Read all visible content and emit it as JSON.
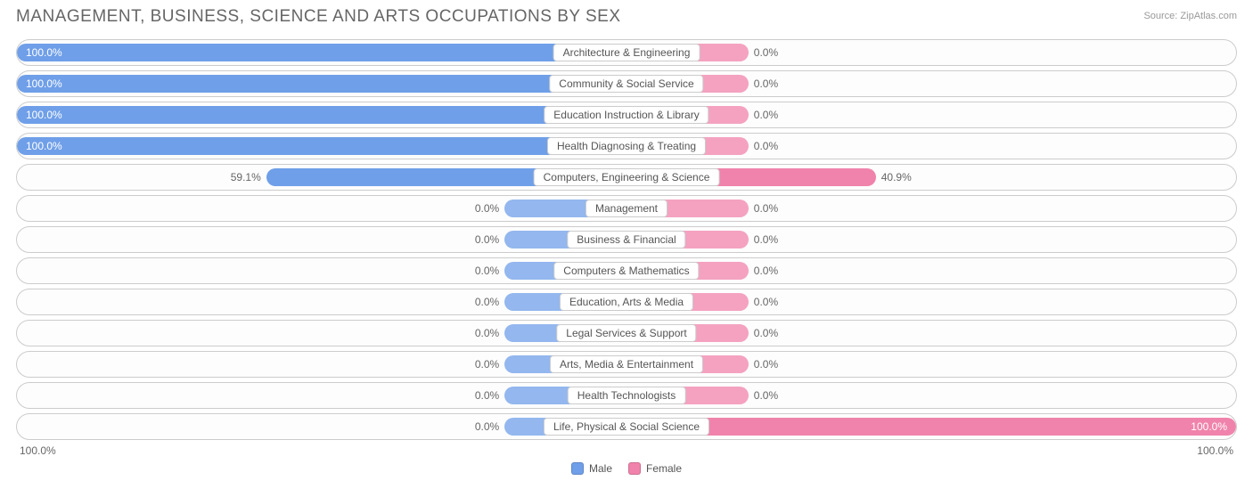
{
  "title": "MANAGEMENT, BUSINESS, SCIENCE AND ARTS OCCUPATIONS BY SEX",
  "source_label": "Source:",
  "source_value": "ZipAtlas.com",
  "axis_left": "100.0%",
  "axis_right": "100.0%",
  "legend": {
    "male": "Male",
    "female": "Female"
  },
  "colors": {
    "male_bar": "#6f9fe8",
    "female_bar": "#f083ab",
    "male_swatch": "#6f9fe8",
    "female_swatch": "#f083ab",
    "row_border": "#cccccc",
    "text": "#666666"
  },
  "min_bar_pct": 20,
  "rows": [
    {
      "category": "Architecture & Engineering",
      "male_pct": 100.0,
      "female_pct": 0.0,
      "male_label": "100.0%",
      "female_label": "0.0%"
    },
    {
      "category": "Community & Social Service",
      "male_pct": 100.0,
      "female_pct": 0.0,
      "male_label": "100.0%",
      "female_label": "0.0%"
    },
    {
      "category": "Education Instruction & Library",
      "male_pct": 100.0,
      "female_pct": 0.0,
      "male_label": "100.0%",
      "female_label": "0.0%"
    },
    {
      "category": "Health Diagnosing & Treating",
      "male_pct": 100.0,
      "female_pct": 0.0,
      "male_label": "100.0%",
      "female_label": "0.0%"
    },
    {
      "category": "Computers, Engineering & Science",
      "male_pct": 59.1,
      "female_pct": 40.9,
      "male_label": "59.1%",
      "female_label": "40.9%"
    },
    {
      "category": "Management",
      "male_pct": 0.0,
      "female_pct": 0.0,
      "male_label": "0.0%",
      "female_label": "0.0%"
    },
    {
      "category": "Business & Financial",
      "male_pct": 0.0,
      "female_pct": 0.0,
      "male_label": "0.0%",
      "female_label": "0.0%"
    },
    {
      "category": "Computers & Mathematics",
      "male_pct": 0.0,
      "female_pct": 0.0,
      "male_label": "0.0%",
      "female_label": "0.0%"
    },
    {
      "category": "Education, Arts & Media",
      "male_pct": 0.0,
      "female_pct": 0.0,
      "male_label": "0.0%",
      "female_label": "0.0%"
    },
    {
      "category": "Legal Services & Support",
      "male_pct": 0.0,
      "female_pct": 0.0,
      "male_label": "0.0%",
      "female_label": "0.0%"
    },
    {
      "category": "Arts, Media & Entertainment",
      "male_pct": 0.0,
      "female_pct": 0.0,
      "male_label": "0.0%",
      "female_label": "0.0%"
    },
    {
      "category": "Health Technologists",
      "male_pct": 0.0,
      "female_pct": 0.0,
      "male_label": "0.0%",
      "female_label": "0.0%"
    },
    {
      "category": "Life, Physical & Social Science",
      "male_pct": 0.0,
      "female_pct": 100.0,
      "male_label": "0.0%",
      "female_label": "100.0%"
    }
  ]
}
